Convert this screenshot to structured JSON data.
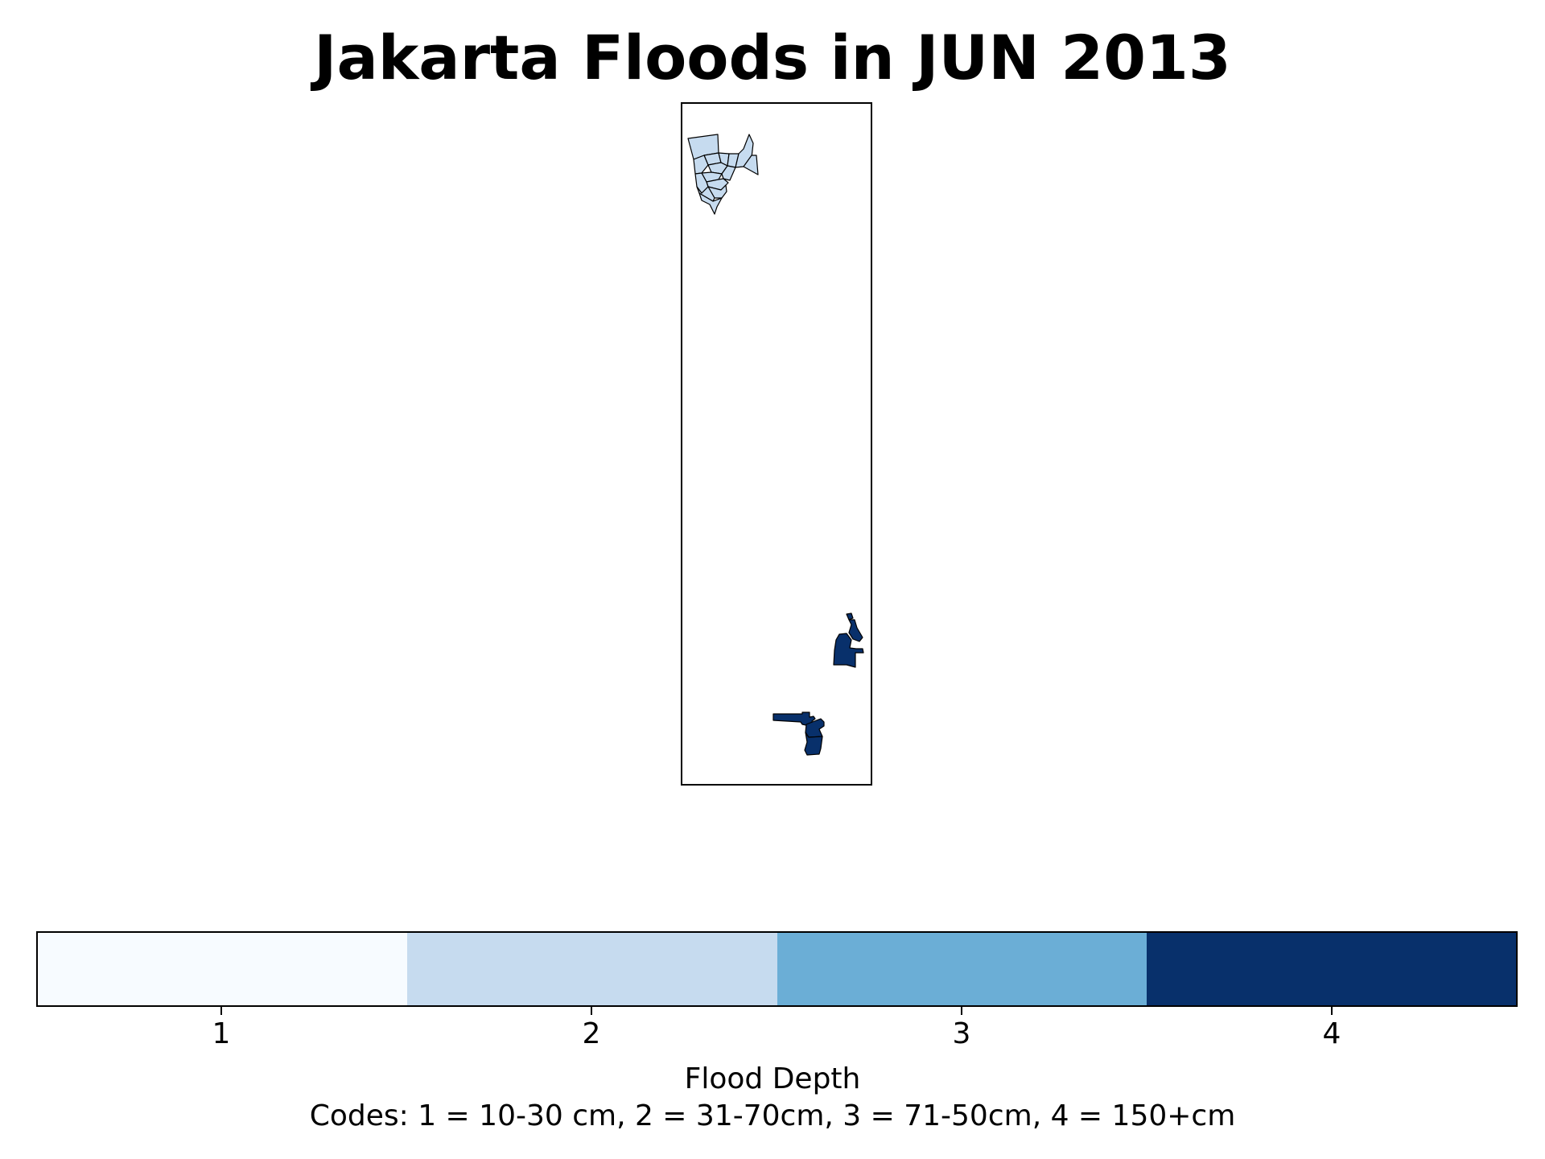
{
  "title": "Jakarta Floods in JUN 2013",
  "legend": {
    "label": "Flood Depth",
    "note": "Codes: 1 = 10-30 cm, 2 = 31-70cm, 3 = 71-50cm, 4 = 150+cm",
    "codes": [
      {
        "label": "1",
        "color": "#f7fbff"
      },
      {
        "label": "2",
        "color": "#c6dbef"
      },
      {
        "label": "3",
        "color": "#6baed6"
      },
      {
        "label": "4",
        "color": "#08306b"
      }
    ]
  },
  "regions": [
    {
      "name": "northwest-cluster",
      "flood_code": 2,
      "color": "#c6dbef"
    },
    {
      "name": "east-cluster",
      "flood_code": 4,
      "color": "#08306b"
    },
    {
      "name": "south-cluster",
      "flood_code": 4,
      "color": "#08306b"
    }
  ]
}
